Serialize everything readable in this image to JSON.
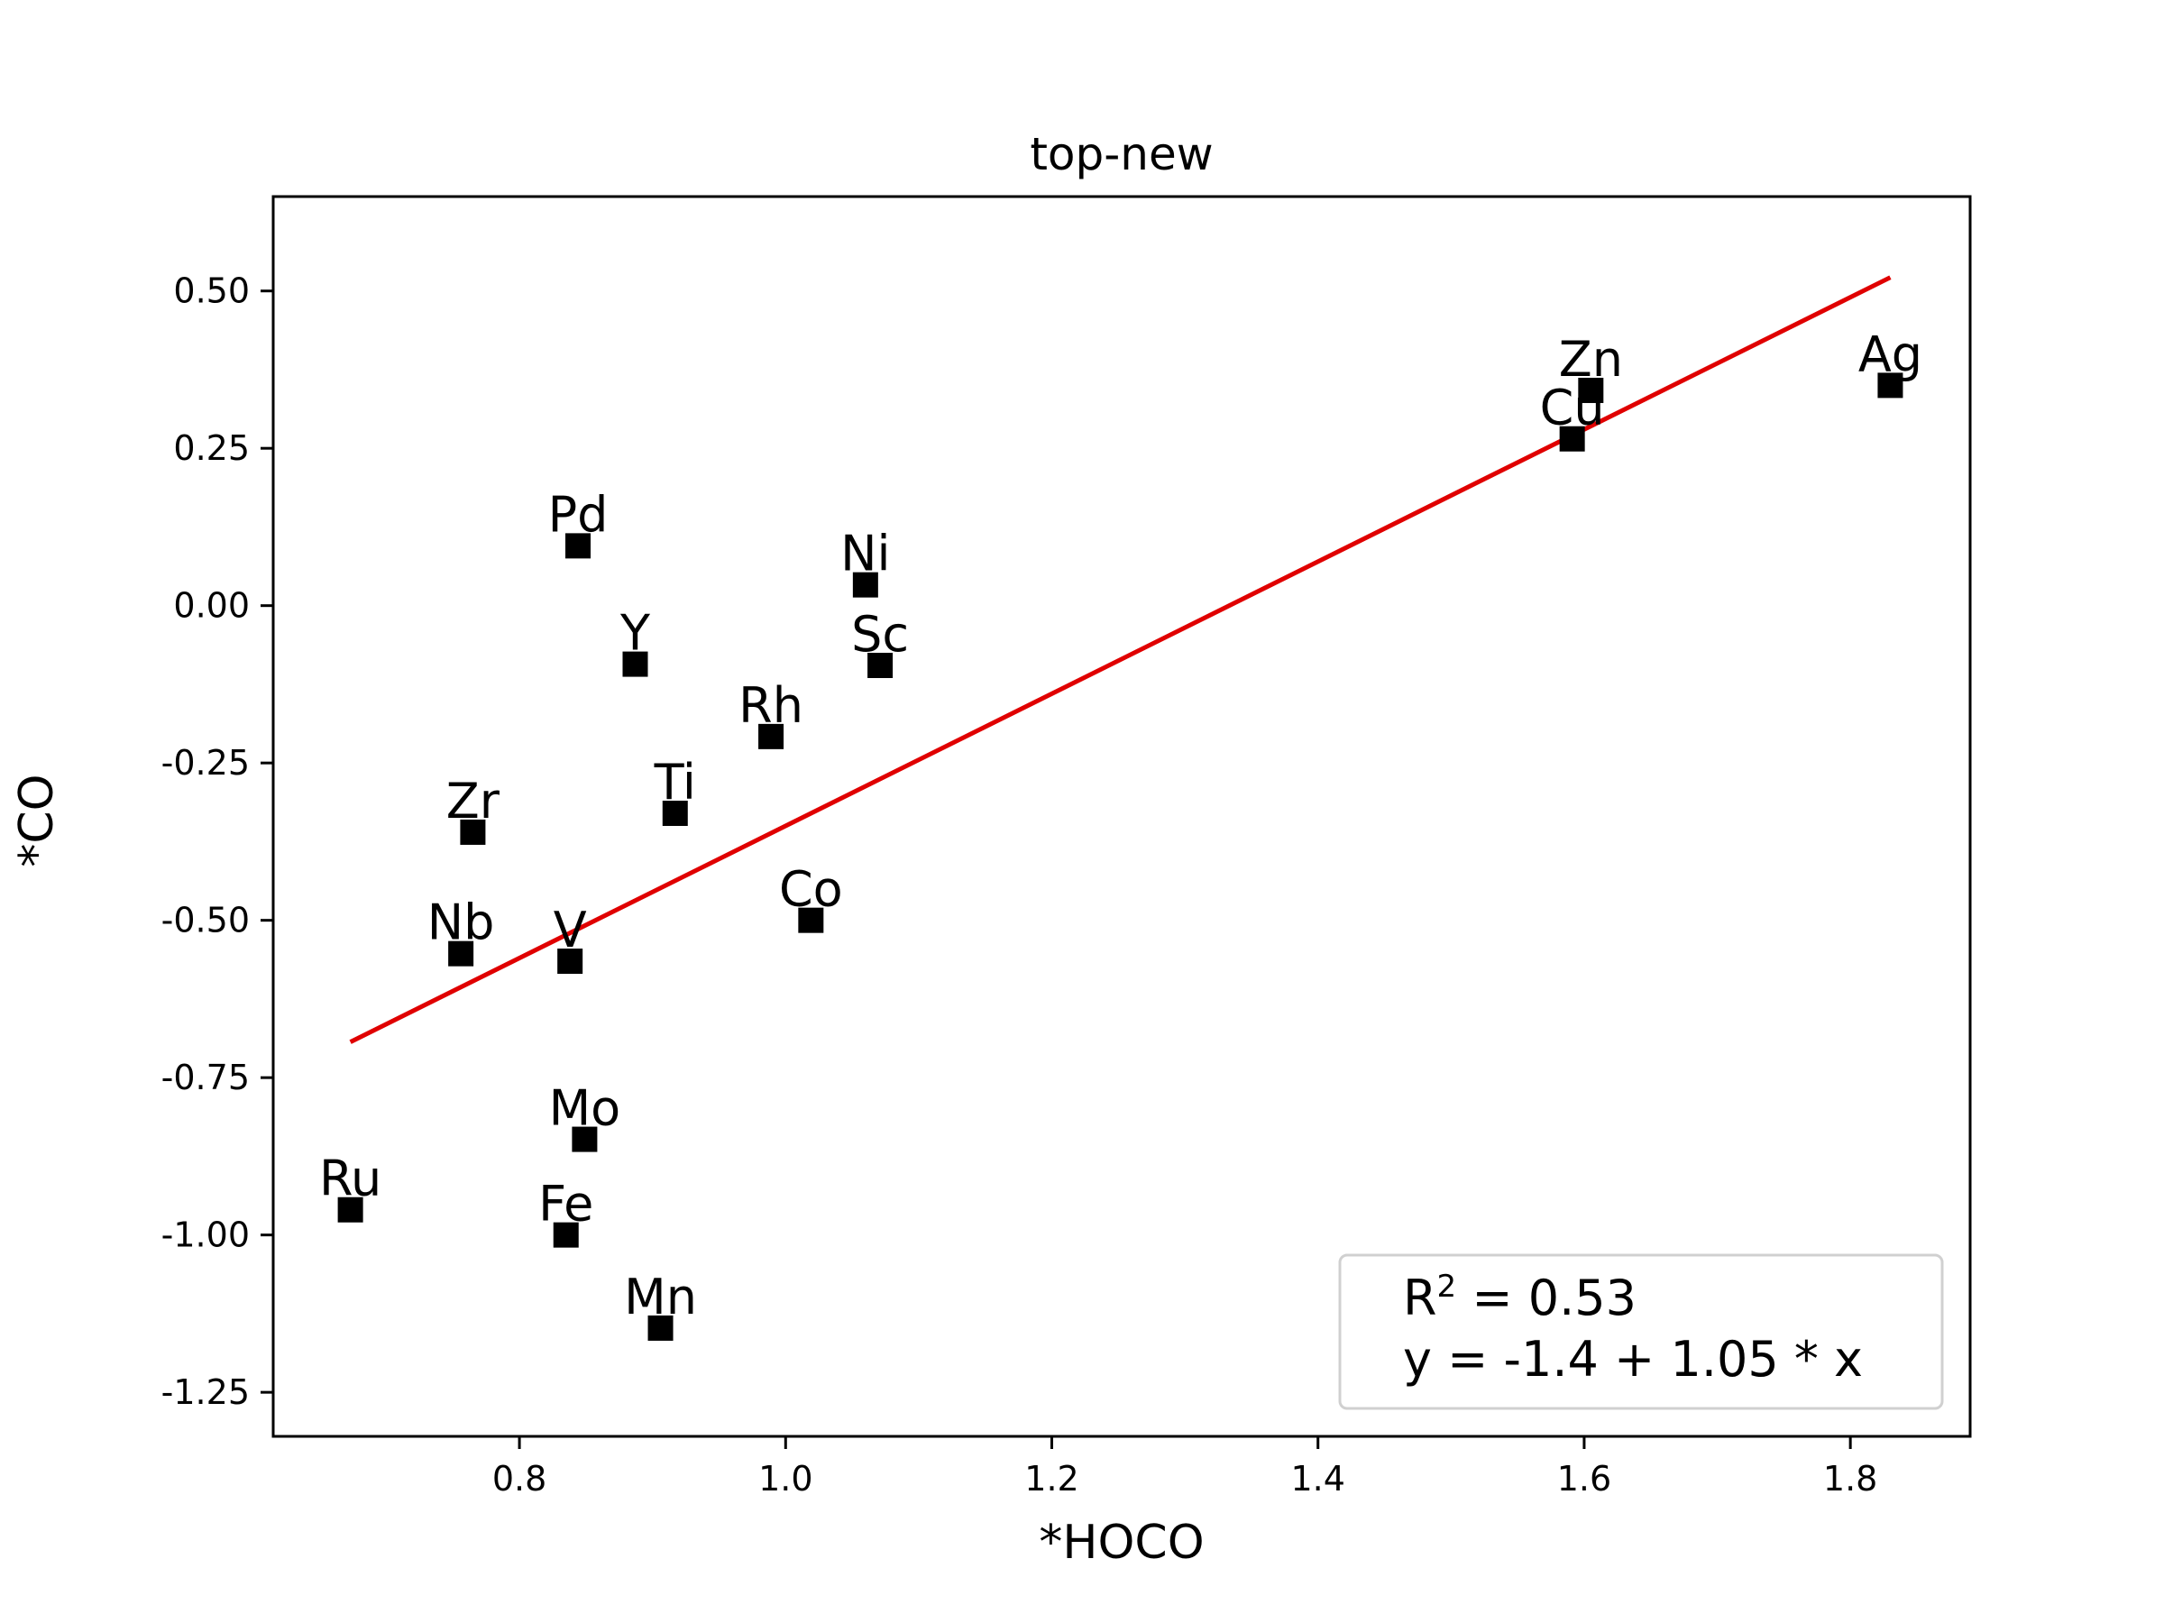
{
  "chart_data": {
    "type": "scatter",
    "title": "top-new",
    "xlabel": "*HOCO",
    "ylabel": "*CO",
    "xlim": [
      0.615,
      1.89
    ],
    "ylim": [
      -1.32,
      0.65
    ],
    "x_ticks": [
      0.8,
      1.0,
      1.2,
      1.4,
      1.6,
      1.8
    ],
    "x_tick_labels": [
      "0.8",
      "1.0",
      "1.2",
      "1.4",
      "1.6",
      "1.8"
    ],
    "y_ticks": [
      0.5,
      0.25,
      0.0,
      -0.25,
      -0.5,
      -0.75,
      -1.0,
      -1.25
    ],
    "y_tick_labels": [
      "0.50",
      "0.25",
      "0.00",
      "-0.25",
      "-0.50",
      "-0.75",
      "-1.00",
      "-1.25"
    ],
    "grid": false,
    "marker_color": "#000000",
    "fit_color": "#e00000",
    "points": [
      {
        "label": "Ru",
        "x": 0.673,
        "y": -0.96
      },
      {
        "label": "Nb",
        "x": 0.756,
        "y": -0.553
      },
      {
        "label": "Zr",
        "x": 0.765,
        "y": -0.36
      },
      {
        "label": "Fe",
        "x": 0.835,
        "y": -1.0
      },
      {
        "label": "V",
        "x": 0.838,
        "y": -0.565
      },
      {
        "label": "Pd",
        "x": 0.844,
        "y": 0.095
      },
      {
        "label": "Mo",
        "x": 0.849,
        "y": -0.848
      },
      {
        "label": "Y",
        "x": 0.887,
        "y": -0.093
      },
      {
        "label": "Mn",
        "x": 0.906,
        "y": -1.148
      },
      {
        "label": "Ti",
        "x": 0.917,
        "y": -0.33
      },
      {
        "label": "Rh",
        "x": 0.989,
        "y": -0.208
      },
      {
        "label": "Co",
        "x": 1.019,
        "y": -0.5
      },
      {
        "label": "Ni",
        "x": 1.06,
        "y": 0.033
      },
      {
        "label": "Sc",
        "x": 1.071,
        "y": -0.095
      },
      {
        "label": "Cu",
        "x": 1.591,
        "y": 0.265
      },
      {
        "label": "Zn",
        "x": 1.605,
        "y": 0.342
      },
      {
        "label": "Ag",
        "x": 1.83,
        "y": 0.35
      }
    ],
    "fit": {
      "intercept": -1.4,
      "slope": 1.05,
      "x_range": [
        0.673,
        1.83
      ],
      "r2_label": "R",
      "r2_superscript": "2",
      "r2_value_text": " = 0.53",
      "equation": "y = -1.4 + 1.05 * x"
    },
    "legend_position": "lower-right"
  }
}
